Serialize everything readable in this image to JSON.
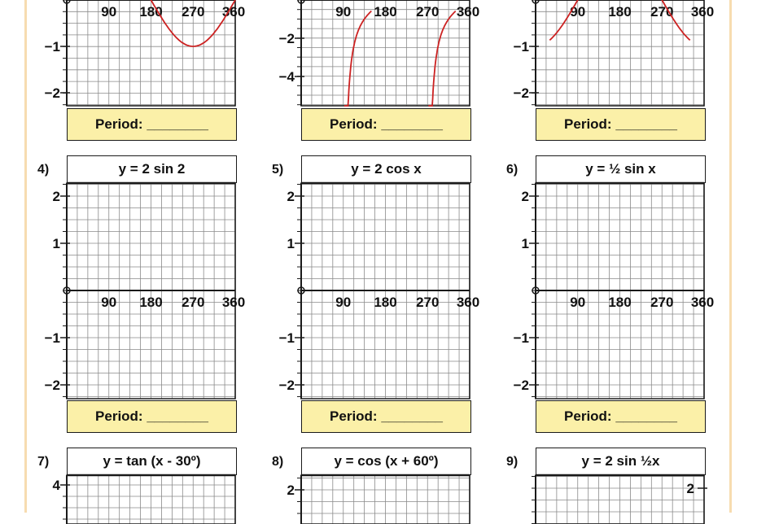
{
  "x_ticks": [
    "90",
    "180",
    "270",
    "360"
  ],
  "period_label": "Period: ________",
  "colors": {
    "grid": "#8a8a8a",
    "axis": "#1a1a1a",
    "curve": "#cc2222",
    "period_bg": "#fbf0a8",
    "frame": "#f7dcb0"
  },
  "panels": [
    {
      "id": "p1",
      "y_labels": [
        {
          "v": -1,
          "t": "−1"
        },
        {
          "v": -2,
          "t": "−2"
        }
      ],
      "curve": "cos",
      "num": "",
      "title": ""
    },
    {
      "id": "p2",
      "y_labels": [
        {
          "v": -2,
          "t": "−2"
        },
        {
          "v": -4,
          "t": "−4"
        }
      ],
      "curve": "tan",
      "num": "",
      "title": ""
    },
    {
      "id": "p3",
      "y_labels": [
        {
          "v": -1,
          "t": "−1"
        },
        {
          "v": -2,
          "t": "−2"
        }
      ],
      "curve": "sin",
      "num": "",
      "title": ""
    },
    {
      "id": "p4",
      "num": "4)",
      "title": "y = 2 sin 2",
      "y_labels": [
        {
          "v": 2,
          "t": "2"
        },
        {
          "v": 1,
          "t": "1"
        },
        {
          "v": -1,
          "t": "−1"
        },
        {
          "v": -2,
          "t": "−2"
        }
      ]
    },
    {
      "id": "p5",
      "num": "5)",
      "title": "y = 2 cos x",
      "y_labels": [
        {
          "v": 2,
          "t": "2"
        },
        {
          "v": 1,
          "t": "1"
        },
        {
          "v": -1,
          "t": "−1"
        },
        {
          "v": -2,
          "t": "−2"
        }
      ]
    },
    {
      "id": "p6",
      "num": "6)",
      "title": "y = ½ sin x",
      "y_labels": [
        {
          "v": 2,
          "t": "2"
        },
        {
          "v": 1,
          "t": "1"
        },
        {
          "v": -1,
          "t": "−1"
        },
        {
          "v": -2,
          "t": "−2"
        }
      ]
    },
    {
      "id": "p7",
      "num": "7)",
      "title": "y = tan (x - 30º)",
      "y_labels": [
        {
          "v": 4,
          "t": "4"
        }
      ]
    },
    {
      "id": "p8",
      "num": "8)",
      "title": "y = cos (x + 60º)",
      "y_labels": [
        {
          "v": 2,
          "t": "2"
        }
      ]
    },
    {
      "id": "p9",
      "num": "9)",
      "title": "y = 2 sin ½x",
      "y_labels": [
        {
          "v": 2,
          "t": "2"
        }
      ]
    }
  ]
}
